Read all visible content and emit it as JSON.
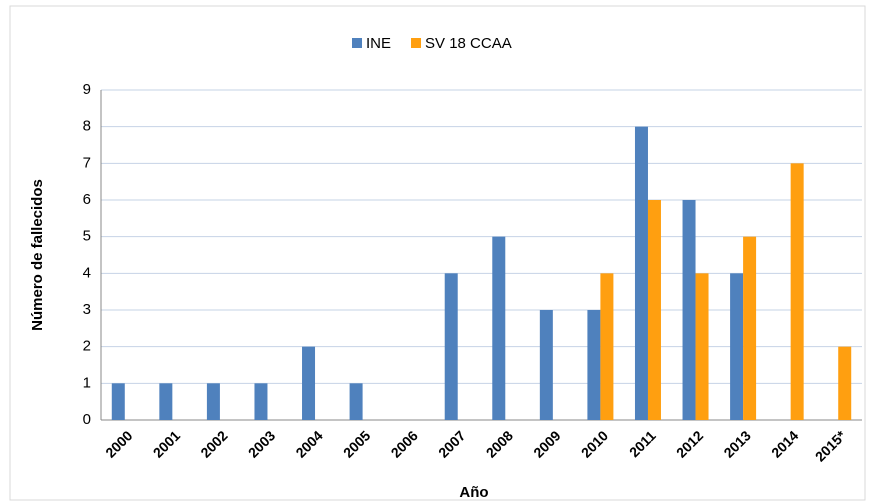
{
  "chart_data": {
    "type": "bar",
    "x_label": "Año",
    "y_label": "Número de fallecidos",
    "categories": [
      "2000",
      "2001",
      "2002",
      "2003",
      "2004",
      "2005",
      "2006",
      "2007",
      "2008",
      "2009",
      "2010",
      "2011",
      "2012",
      "2013",
      "2014",
      "2015*"
    ],
    "series": [
      {
        "name": "INE",
        "color": "#4f81bd",
        "values": [
          1,
          1,
          1,
          1,
          2,
          1,
          null,
          4,
          5,
          3,
          3,
          8,
          6,
          4,
          null,
          null
        ]
      },
      {
        "name": "SV 18 CCAA",
        "color": "#ff9f10",
        "values": [
          null,
          null,
          null,
          null,
          null,
          null,
          null,
          null,
          null,
          null,
          4,
          6,
          4,
          5,
          7,
          2
        ]
      }
    ],
    "ylim": [
      0,
      9
    ],
    "yticks": [
      0,
      1,
      2,
      3,
      4,
      5,
      6,
      7,
      8,
      9
    ],
    "grid": true,
    "legend": "top"
  }
}
